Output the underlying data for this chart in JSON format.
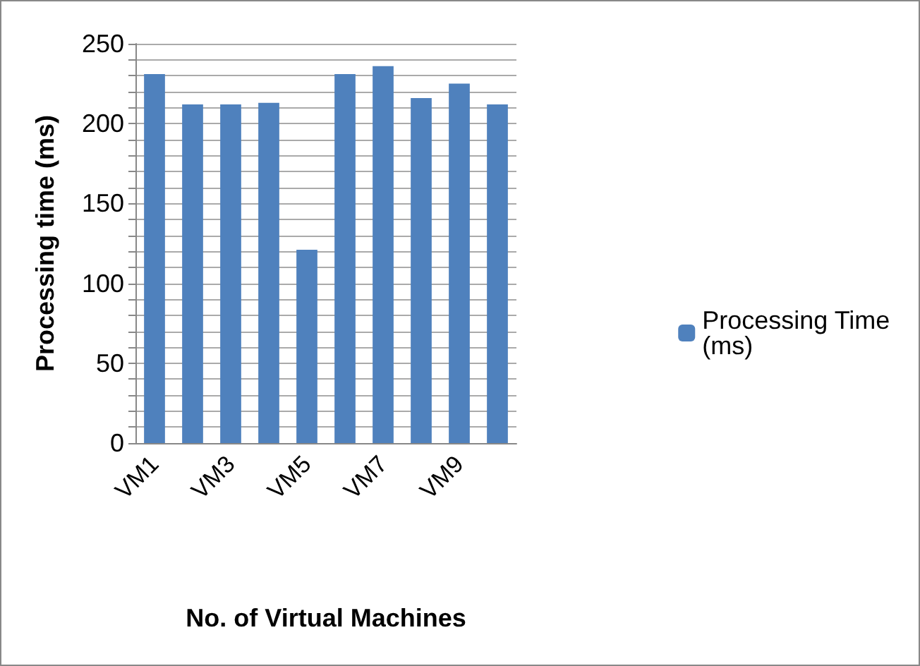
{
  "chart_data": {
    "type": "bar",
    "xlabel": "No. of Virtual Machines",
    "ylabel": "Processing time (ms)",
    "categories": [
      "VM1",
      null,
      "VM3",
      null,
      "VM5",
      null,
      "VM7",
      null,
      "VM9",
      null
    ],
    "series": [
      {
        "name": "Processing Time (ms)",
        "color": "#4f81bd",
        "values": [
          231,
          212,
          212,
          213,
          121,
          231,
          236,
          216,
          225,
          212
        ]
      }
    ],
    "ylim": [
      0,
      250
    ],
    "yticks": [
      0,
      {
        "value": 10,
        "label": null
      },
      {
        "value": 20,
        "label": null
      },
      {
        "value": 30,
        "label": null
      },
      {
        "value": 40,
        "label": null
      },
      50,
      {
        "value": 60,
        "label": null
      },
      {
        "value": 70,
        "label": null
      },
      {
        "value": 80,
        "label": null
      },
      {
        "value": 90,
        "label": null
      },
      100,
      {
        "value": 110,
        "label": null
      },
      {
        "value": 120,
        "label": null
      },
      {
        "value": 130,
        "label": null
      },
      {
        "value": 140,
        "label": null
      },
      150,
      {
        "value": 160,
        "label": null
      },
      {
        "value": 170,
        "label": null
      },
      {
        "value": 180,
        "label": null
      },
      {
        "value": 190,
        "label": null
      },
      200,
      {
        "value": 210,
        "label": null
      },
      {
        "value": 220,
        "label": null
      },
      {
        "value": 230,
        "label": null
      },
      {
        "value": 240,
        "label": null
      },
      250
    ],
    "grid": "y",
    "legend": "right"
  }
}
